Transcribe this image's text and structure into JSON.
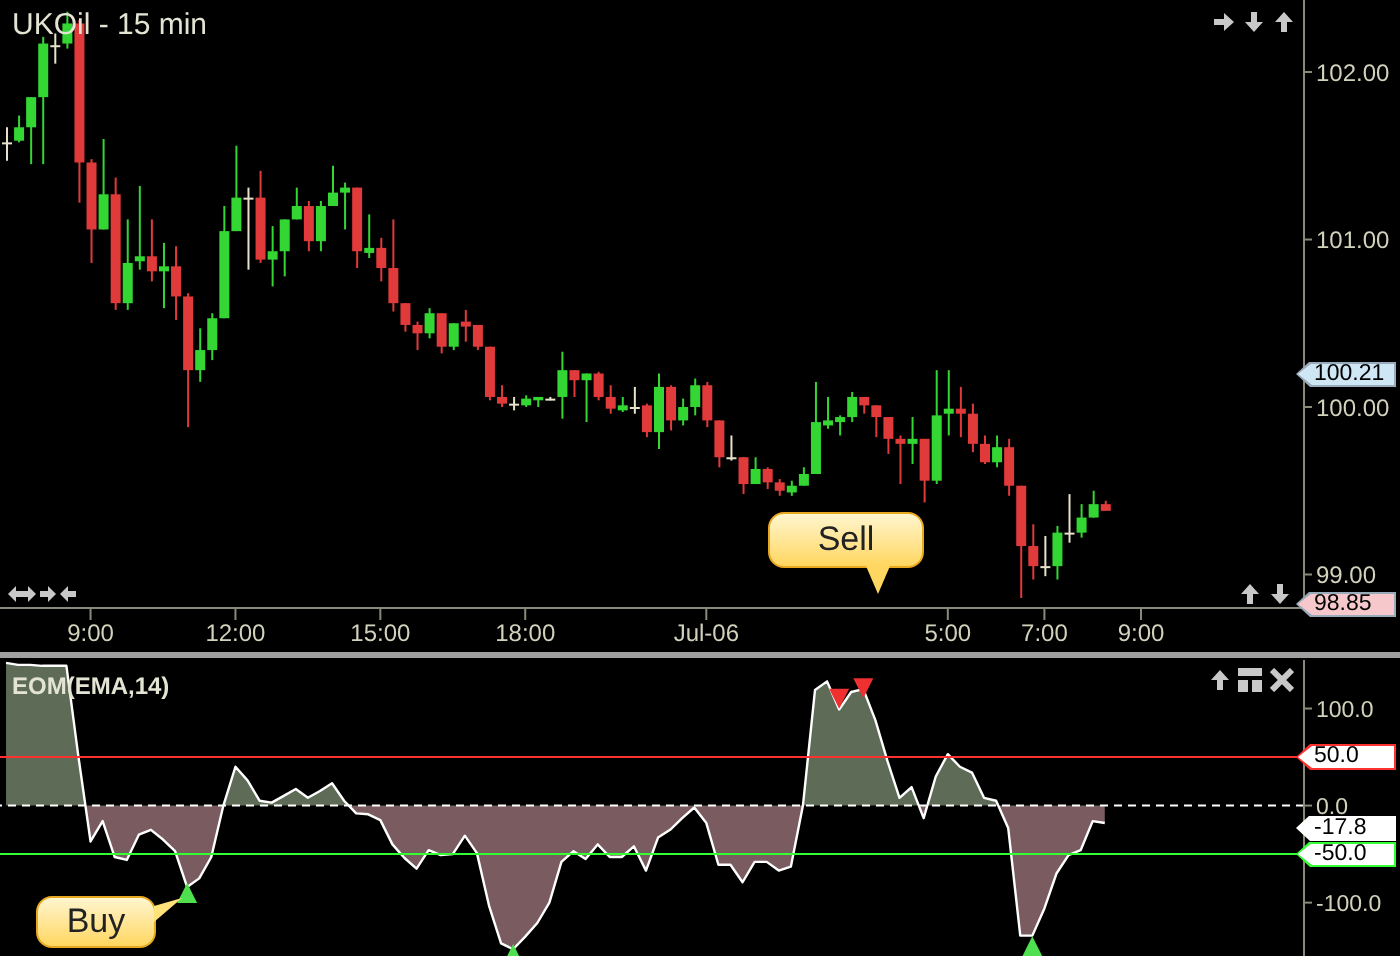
{
  "chart_data": [
    {
      "type": "candlestick",
      "title": "UKOil - 15 min",
      "categories": [
        null,
        null,
        null,
        null,
        null,
        null,
        null,
        "9:00",
        null,
        null,
        null,
        null,
        null,
        null,
        null,
        null,
        null,
        null,
        null,
        "12:00",
        null,
        null,
        null,
        null,
        null,
        null,
        null,
        null,
        null,
        null,
        null,
        "15:00",
        null,
        null,
        null,
        null,
        null,
        null,
        null,
        null,
        null,
        null,
        null,
        "18:00",
        null,
        null,
        null,
        null,
        null,
        null,
        null,
        null,
        null,
        null,
        null,
        null,
        null,
        null,
        "Jul-06",
        null,
        null,
        null,
        null,
        null,
        null,
        null,
        null,
        null,
        null,
        null,
        null,
        null,
        null,
        null,
        null,
        null,
        null,
        null,
        "5:00",
        null,
        null,
        null,
        null,
        null,
        null,
        null,
        "7:00",
        null,
        null,
        null,
        null,
        null,
        null,
        null,
        "9:00",
        null,
        null,
        null,
        null,
        null,
        null,
        null,
        null,
        null,
        null,
        null,
        null,
        null
      ],
      "ohlc": [
        [
          101.58,
          101.67,
          101.47,
          101.57
        ],
        [
          101.59,
          101.74,
          101.58,
          101.67
        ],
        [
          101.67,
          101.85,
          101.45,
          101.85
        ],
        [
          101.85,
          102.21,
          101.45,
          102.17
        ],
        [
          102.16,
          102.23,
          102.05,
          102.15
        ],
        [
          102.17,
          102.36,
          102.14,
          102.29
        ],
        [
          102.29,
          102.31,
          101.22,
          101.46
        ],
        [
          101.46,
          101.48,
          100.86,
          101.06
        ],
        [
          101.06,
          101.6,
          101.06,
          101.27
        ],
        [
          101.27,
          101.37,
          100.58,
          100.62
        ],
        [
          100.62,
          101.12,
          100.58,
          100.86
        ],
        [
          100.87,
          101.32,
          100.82,
          100.9
        ],
        [
          100.9,
          101.12,
          100.75,
          100.81
        ],
        [
          100.81,
          100.98,
          100.59,
          100.84
        ],
        [
          100.84,
          100.96,
          100.52,
          100.66
        ],
        [
          100.66,
          100.68,
          99.88,
          100.22
        ],
        [
          100.22,
          100.47,
          100.15,
          100.34
        ],
        [
          100.34,
          100.56,
          100.28,
          100.53
        ],
        [
          100.53,
          101.2,
          100.53,
          101.05
        ],
        [
          101.05,
          101.56,
          101.05,
          101.25
        ],
        [
          101.25,
          101.31,
          100.82,
          101.24
        ],
        [
          101.25,
          101.41,
          100.86,
          100.88
        ],
        [
          100.88,
          101.08,
          100.72,
          100.93
        ],
        [
          100.93,
          101.12,
          100.78,
          101.12
        ],
        [
          101.12,
          101.31,
          101.12,
          101.2
        ],
        [
          101.2,
          101.23,
          100.93,
          100.99
        ],
        [
          100.99,
          101.23,
          100.93,
          101.2
        ],
        [
          101.2,
          101.44,
          101.2,
          101.28
        ],
        [
          101.28,
          101.34,
          101.06,
          101.31
        ],
        [
          101.31,
          101.31,
          100.83,
          100.93
        ],
        [
          100.92,
          101.15,
          100.89,
          100.95
        ],
        [
          100.95,
          101.01,
          100.75,
          100.83
        ],
        [
          100.83,
          101.12,
          100.57,
          100.62
        ],
        [
          100.62,
          100.62,
          100.45,
          100.49
        ],
        [
          100.49,
          100.51,
          100.34,
          100.44
        ],
        [
          100.44,
          100.59,
          100.41,
          100.56
        ],
        [
          100.56,
          100.56,
          100.32,
          100.36
        ],
        [
          100.36,
          100.5,
          100.34,
          100.5
        ],
        [
          100.51,
          100.58,
          100.39,
          100.48
        ],
        [
          100.49,
          100.49,
          100.34,
          100.36
        ],
        [
          100.36,
          100.36,
          100.04,
          100.06
        ],
        [
          100.06,
          100.13,
          100.0,
          100.02
        ],
        [
          100.02,
          100.06,
          99.98,
          100.01
        ],
        [
          100.01,
          100.07,
          100.0,
          100.05
        ],
        [
          100.04,
          100.06,
          100.0,
          100.06
        ],
        [
          100.05,
          100.06,
          100.04,
          100.04
        ],
        [
          100.06,
          100.33,
          99.93,
          100.22
        ],
        [
          100.22,
          100.22,
          100.06,
          100.16
        ],
        [
          100.16,
          100.2,
          99.91,
          100.2
        ],
        [
          100.2,
          100.21,
          100.04,
          100.06
        ],
        [
          100.06,
          100.13,
          99.96,
          99.99
        ],
        [
          99.98,
          100.06,
          99.97,
          100.01
        ],
        [
          100.0,
          100.12,
          99.96,
          99.99
        ],
        [
          100.01,
          100.02,
          99.82,
          99.85
        ],
        [
          99.85,
          100.2,
          99.75,
          100.12
        ],
        [
          100.12,
          100.13,
          99.86,
          99.92
        ],
        [
          99.92,
          100.05,
          99.89,
          100.0
        ],
        [
          100.0,
          100.17,
          99.95,
          100.13
        ],
        [
          100.13,
          100.15,
          99.88,
          99.92
        ],
        [
          99.92,
          99.92,
          99.64,
          99.7
        ],
        [
          99.7,
          99.83,
          99.68,
          99.69
        ],
        [
          99.7,
          99.7,
          99.48,
          99.54
        ],
        [
          99.54,
          99.7,
          99.54,
          99.63
        ],
        [
          99.63,
          99.64,
          99.51,
          99.55
        ],
        [
          99.55,
          99.57,
          99.47,
          99.5
        ],
        [
          99.49,
          99.56,
          99.47,
          99.53
        ],
        [
          99.53,
          99.64,
          99.53,
          99.6
        ],
        [
          99.6,
          100.15,
          99.6,
          99.91
        ],
        [
          99.89,
          100.06,
          99.87,
          99.92
        ],
        [
          99.91,
          99.95,
          99.83,
          99.94
        ],
        [
          99.94,
          100.09,
          99.91,
          100.06
        ],
        [
          100.06,
          100.06,
          99.96,
          100.01
        ],
        [
          100.01,
          100.01,
          99.82,
          99.94
        ],
        [
          99.94,
          99.94,
          99.72,
          99.81
        ],
        [
          99.81,
          99.83,
          99.54,
          99.78
        ],
        [
          99.78,
          99.94,
          99.66,
          99.81
        ],
        [
          99.81,
          99.81,
          99.43,
          99.56
        ],
        [
          99.56,
          100.22,
          99.54,
          99.95
        ],
        [
          99.96,
          100.22,
          99.83,
          99.99
        ],
        [
          99.99,
          100.12,
          99.82,
          99.96
        ],
        [
          99.96,
          100.02,
          99.73,
          99.78
        ],
        [
          99.78,
          99.83,
          99.66,
          99.67
        ],
        [
          99.67,
          99.83,
          99.64,
          99.76
        ],
        [
          99.76,
          99.81,
          99.47,
          99.53
        ],
        [
          99.53,
          99.53,
          98.86,
          99.17
        ],
        [
          99.17,
          99.3,
          98.97,
          99.05
        ],
        [
          99.05,
          99.23,
          98.99,
          99.04
        ],
        [
          99.05,
          99.29,
          98.97,
          99.25
        ],
        [
          99.25,
          99.48,
          99.19,
          99.24
        ],
        [
          99.25,
          99.42,
          99.22,
          99.34
        ],
        [
          99.34,
          99.5,
          99.34,
          99.42
        ],
        [
          99.42,
          99.44,
          99.38,
          99.38
        ],
        null,
        null,
        null,
        null,
        null,
        null,
        null,
        null,
        null,
        null,
        null,
        null,
        null,
        null,
        null,
        null
      ],
      "colors": [
        "#e6e2cc",
        "#33d633",
        "#33d633",
        "#33d633",
        "#e6e2cc",
        "#33d633",
        "#e03a3a",
        "#e03a3a",
        "#33d633",
        "#e03a3a",
        "#33d633",
        "#33d633",
        "#e03a3a",
        "#33d633",
        "#e03a3a",
        "#e03a3a",
        "#33d633",
        "#33d633",
        "#33d633",
        "#33d633",
        "#e6e2cc",
        "#e03a3a",
        "#33d633",
        "#33d633",
        "#33d633",
        "#e03a3a",
        "#33d633",
        "#33d633",
        "#33d633",
        "#e03a3a",
        "#33d633",
        "#e03a3a",
        "#e03a3a",
        "#e03a3a",
        "#e03a3a",
        "#33d633",
        "#e03a3a",
        "#33d633",
        "#e03a3a",
        "#e03a3a",
        "#e03a3a",
        "#e03a3a",
        "#e6e2cc",
        "#33d633",
        "#33d633",
        "#e6e2cc",
        "#33d633",
        "#e03a3a",
        "#33d633",
        "#e03a3a",
        "#e03a3a",
        "#33d633",
        "#e6e2cc",
        "#e03a3a",
        "#33d633",
        "#e03a3a",
        "#33d633",
        "#33d633",
        "#e03a3a",
        "#e03a3a",
        "#e6e2cc",
        "#e03a3a",
        "#33d633",
        "#e03a3a",
        "#e03a3a",
        "#33d633",
        "#33d633",
        "#33d633",
        "#33d633",
        "#33d633",
        "#33d633",
        "#e03a3a",
        "#e03a3a",
        "#e03a3a",
        "#e03a3a",
        "#33d633",
        "#e03a3a",
        "#33d633",
        "#33d633",
        "#e03a3a",
        "#e03a3a",
        "#e03a3a",
        "#33d633",
        "#e03a3a",
        "#e03a3a",
        "#e03a3a",
        "#e6e2cc",
        "#33d633",
        "#e6e2cc",
        "#33d633",
        "#33d633",
        "#e03a3a",
        null,
        null,
        null,
        null,
        null,
        null,
        null,
        null,
        null,
        null,
        null,
        null,
        null,
        null,
        null,
        null
      ],
      "ylim": [
        98.8,
        102.43
      ],
      "yticks": [
        {
          "value": 99,
          "label": "99.00"
        },
        {
          "value": 100,
          "label": "100.00"
        },
        {
          "value": 101,
          "label": "101.00"
        },
        {
          "value": 102,
          "label": "102.00"
        }
      ],
      "annotations": [
        "100.21",
        "98.85"
      ]
    },
    {
      "type": "area",
      "title": "EOM(EMA,14)",
      "categories": [
        null,
        null,
        null,
        null,
        null,
        null,
        null,
        null,
        null,
        null,
        null,
        null,
        null,
        null,
        null,
        null,
        null,
        null,
        null,
        null,
        null,
        null,
        null,
        null,
        null,
        null,
        null,
        null,
        null,
        null,
        null,
        null,
        null,
        null,
        null,
        null,
        null,
        null,
        null,
        null,
        null,
        null,
        null,
        null,
        null,
        null,
        null,
        null,
        null,
        null,
        null,
        null,
        null,
        null,
        null,
        null,
        null,
        null,
        null,
        null,
        null,
        null,
        null,
        null,
        null,
        null,
        null,
        null,
        null,
        null,
        null,
        null,
        null,
        null,
        null,
        null,
        null,
        null,
        null,
        null,
        null,
        null,
        null,
        null,
        null,
        null,
        null,
        null,
        null,
        null,
        null,
        null,
        null,
        null,
        null,
        null,
        null,
        null,
        null,
        null,
        null,
        null,
        null,
        null,
        null,
        null,
        null,
        null
      ],
      "series": [
        {
          "type": "area",
          "color": "#ffffff",
          "values": [
            147,
            145,
            145,
            144,
            144,
            144,
            50,
            -37,
            -16,
            -53,
            -56,
            -30,
            -25,
            -35,
            -47,
            -84,
            -75,
            -53,
            0,
            40,
            26,
            5,
            3,
            10,
            17,
            8,
            15,
            23,
            5,
            -8,
            -9,
            -15,
            -40,
            -54,
            -65,
            -46,
            -51,
            -50,
            -31,
            -49,
            -103,
            -142,
            -148,
            -135,
            -121,
            -100,
            -58,
            -47,
            -55,
            -40,
            -53,
            -53,
            -42,
            -67,
            -33,
            -25,
            -13,
            -2,
            -18,
            -61,
            -61,
            -79,
            -58,
            -58,
            -67,
            -63,
            0,
            119,
            128,
            99,
            117,
            120,
            88,
            46,
            8,
            19,
            -13,
            30,
            53,
            40,
            34,
            8,
            5,
            -23,
            -134,
            -134,
            -106,
            -70,
            -51,
            -46,
            -16,
            -18,
            null,
            null,
            null,
            null,
            null,
            null,
            null,
            null,
            null,
            null,
            null,
            null,
            null,
            null,
            null,
            null
          ]
        },
        {
          "type": "scatter",
          "marker": "triangle",
          "color": "#4ee04e",
          "values": [
            null,
            null,
            null,
            null,
            null,
            null,
            null,
            null,
            null,
            null,
            null,
            null,
            null,
            null,
            null,
            -90,
            null,
            null,
            null,
            null,
            null,
            null,
            null,
            null,
            null,
            null,
            null,
            null,
            null,
            null,
            null,
            null,
            null,
            null,
            null,
            null,
            null,
            null,
            null,
            null,
            null,
            null,
            -153,
            null,
            null,
            null,
            null,
            null,
            null,
            null,
            null,
            null,
            null,
            null,
            null,
            null,
            null,
            null,
            null,
            null,
            null,
            null,
            null,
            null,
            null,
            null,
            null,
            null,
            null,
            null,
            null,
            null,
            null,
            null,
            null,
            null,
            null,
            null,
            null,
            null,
            null,
            null,
            null,
            null,
            null,
            -145,
            null,
            null,
            null,
            null,
            null,
            null,
            null,
            null,
            null,
            null,
            null,
            null,
            null,
            null,
            null,
            null,
            null,
            null,
            null,
            null,
            null,
            null
          ]
        },
        {
          "type": "scatter",
          "marker": "triangle",
          "color": "#ee3030",
          "values": [
            null,
            null,
            null,
            null,
            null,
            null,
            null,
            null,
            null,
            null,
            null,
            null,
            null,
            null,
            null,
            null,
            null,
            null,
            null,
            null,
            null,
            null,
            null,
            null,
            null,
            null,
            null,
            null,
            null,
            null,
            null,
            null,
            null,
            null,
            null,
            null,
            null,
            null,
            null,
            null,
            null,
            null,
            null,
            null,
            null,
            null,
            null,
            null,
            null,
            null,
            null,
            null,
            null,
            null,
            null,
            null,
            null,
            null,
            null,
            null,
            null,
            null,
            null,
            null,
            null,
            null,
            null,
            null,
            null,
            110,
            null,
            121,
            null,
            null,
            null,
            null,
            null,
            null,
            null,
            null,
            null,
            null,
            null,
            null,
            null,
            null,
            null,
            null,
            null,
            null,
            null,
            null,
            null,
            null,
            null,
            null,
            null,
            null,
            null,
            null,
            null,
            null,
            null,
            null,
            null,
            null,
            null,
            null
          ]
        }
      ],
      "ylim": [
        -155,
        150
      ],
      "yticks": [
        {
          "value": 100,
          "label": "100.0"
        },
        {
          "value": 0,
          "label": "0.0"
        },
        {
          "value": -100,
          "label": "-100.0"
        }
      ],
      "tick_labels": "y",
      "ref_lines": [
        {
          "axis": "y",
          "value": 50,
          "label": "50.0",
          "color": "#ff3030"
        },
        {
          "axis": "y",
          "value": -50,
          "label": "-50.0",
          "color": "#33ff33"
        },
        {
          "axis": "y",
          "value": 0,
          "color": "#ffffff",
          "line_style": "dashed"
        }
      ],
      "annotations": [
        "Buy",
        "Sell",
        "-17.8"
      ]
    }
  ]
}
